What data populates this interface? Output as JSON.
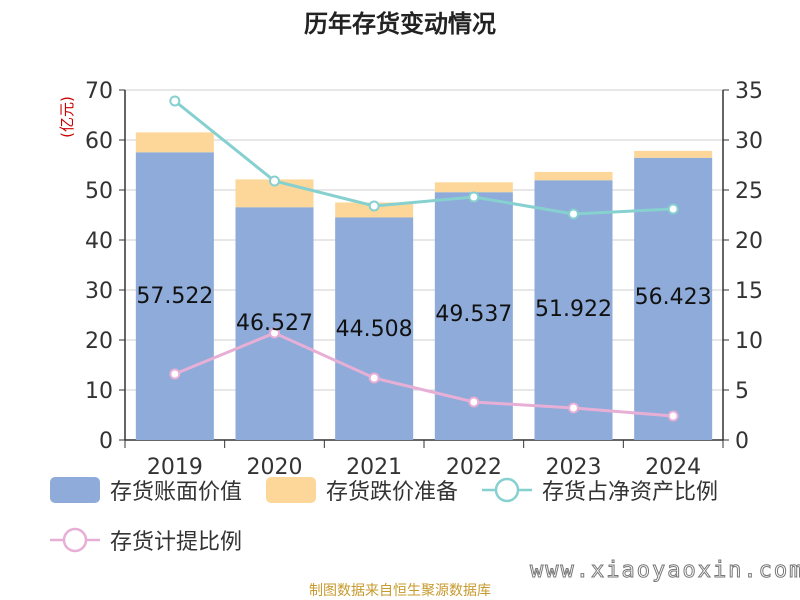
{
  "title": "历年存货变动情况",
  "source_note": "制图数据来自恒生聚源数据库",
  "watermark": "www.xiaoyaoxin.com",
  "colors": {
    "book_value": "#8eabd9",
    "reserve": "#fdd799",
    "ratio_net_assets": "#86d0d0",
    "provision_ratio": "#e8afd6",
    "left_axis_label": "#cc0000"
  },
  "chart_data": {
    "type": "bar",
    "categories": [
      "2019",
      "2020",
      "2021",
      "2022",
      "2023",
      "2024"
    ],
    "left_axis": {
      "label": "(亿元)",
      "min": 0,
      "max": 70,
      "ticks": [
        0,
        10,
        20,
        30,
        40,
        50,
        60,
        70
      ]
    },
    "right_axis": {
      "min": 0,
      "max": 35,
      "ticks": [
        0,
        5,
        10,
        15,
        20,
        25,
        30,
        35
      ]
    },
    "series": [
      {
        "name": "存货账面价值",
        "kind": "bar",
        "axis": "left",
        "values": [
          57.522,
          46.527,
          44.508,
          49.537,
          51.922,
          56.423
        ],
        "labels": [
          "57.522",
          "46.527",
          "44.508",
          "49.537",
          "51.922",
          "56.423"
        ]
      },
      {
        "name": "存货跌价准备",
        "kind": "bar-stack",
        "axis": "left",
        "values": [
          4.0,
          5.6,
          3.0,
          2.0,
          1.7,
          1.4
        ]
      },
      {
        "name": "存货占净资产比例",
        "kind": "line",
        "axis": "right",
        "values": [
          33.9,
          25.9,
          23.4,
          24.3,
          22.6,
          23.1
        ]
      },
      {
        "name": "存货计提比例",
        "kind": "line",
        "axis": "right",
        "values": [
          6.6,
          10.7,
          6.2,
          3.8,
          3.2,
          2.4
        ]
      }
    ],
    "grid": true,
    "legend_position": "bottom"
  }
}
